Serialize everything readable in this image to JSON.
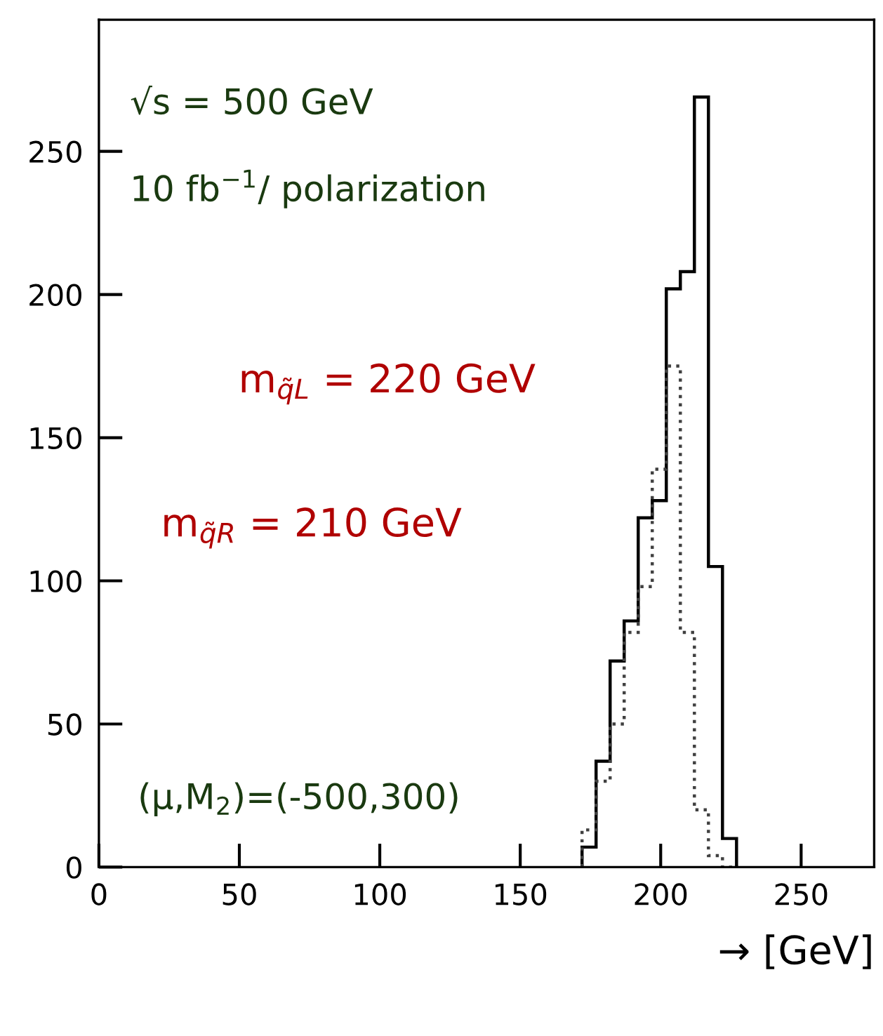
{
  "chart_data": {
    "type": "histogram",
    "xlabel": "→ [GeV]",
    "bins": [
      172,
      177,
      182,
      187,
      192,
      197,
      202,
      207,
      212,
      217,
      222,
      227
    ],
    "series": [
      {
        "color": "#000000",
        "line_style": "solid",
        "values": [
          7,
          37,
          72,
          86,
          122,
          128,
          202,
          208,
          269,
          105,
          10
        ]
      },
      {
        "color": "#404040",
        "line_style": "dotted",
        "values": [
          13,
          30,
          50,
          82,
          98,
          139,
          175,
          82,
          20,
          4,
          0
        ]
      }
    ],
    "annotations": [
      {
        "text": "√s = 500 GeV"
      },
      {
        "text": "10 fb$^{−1}$/ polarization"
      },
      "m$_{q̃L}$ = 220 GeV",
      "m$_{q̃R}$ = 210 GeV",
      {
        "text": "(μ,M$_{2}$)=(-500,300)"
      }
    ],
    "xlim": [
      0,
      276
    ],
    "ylim": [
      0,
      296
    ],
    "xticks": [
      0,
      50,
      100,
      150,
      200,
      250
    ],
    "yticks": [
      0,
      50,
      100,
      150,
      200,
      250
    ],
    "grid": false,
    "legend": false
  }
}
